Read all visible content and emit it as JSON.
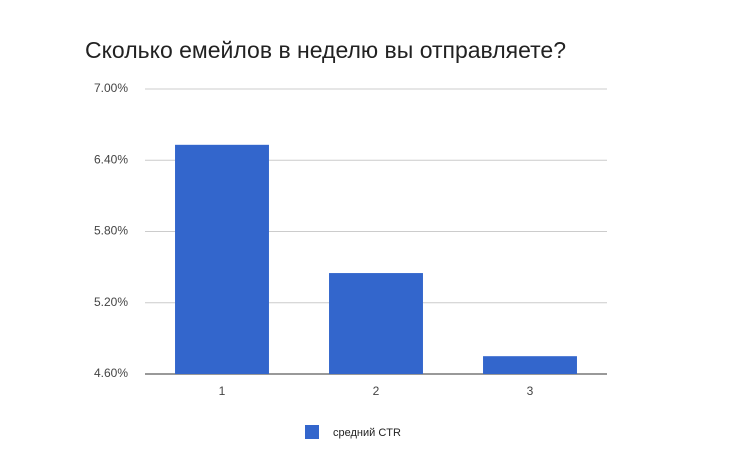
{
  "chart_data": {
    "type": "bar",
    "title": "Сколько емейлов в неделю вы отправляете?",
    "categories": [
      "1",
      "2",
      "3"
    ],
    "series": [
      {
        "name": "средний CTR",
        "color": "#3366cc",
        "values": [
          6.53,
          5.45,
          4.75
        ]
      }
    ],
    "ylim": [
      4.6,
      7.0
    ],
    "yticks": [
      {
        "value": 4.6,
        "label": "4.60%"
      },
      {
        "value": 5.2,
        "label": "5.20%"
      },
      {
        "value": 5.8,
        "label": "5.80%"
      },
      {
        "value": 6.4,
        "label": "6.40%"
      },
      {
        "value": 7.0,
        "label": "7.00%"
      }
    ],
    "grid": true,
    "legend": "bottom"
  }
}
